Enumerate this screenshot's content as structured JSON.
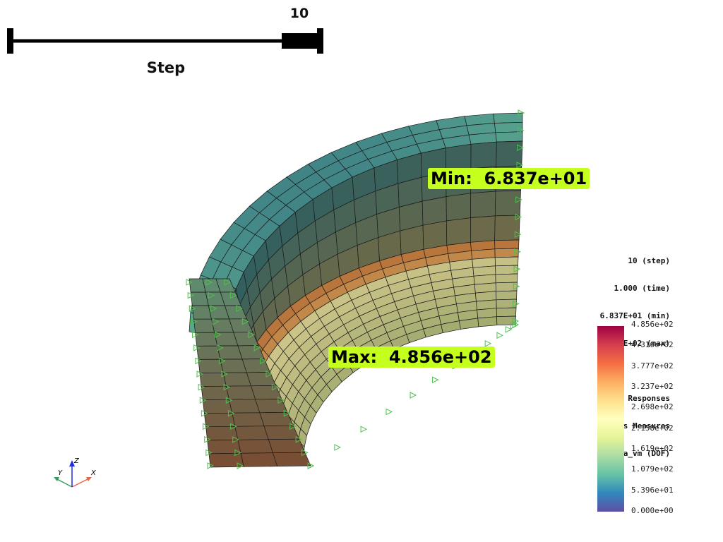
{
  "slider": {
    "value_label": "10",
    "title": "Step",
    "fraction": 1.0
  },
  "annotations": {
    "min_text": "Min:  6.837e+01",
    "max_text": "Max:  4.856e+02",
    "highlight_color": "#c4ff1e"
  },
  "info": {
    "step_line": "10 (step)",
    "time_line": "1.000 (time)",
    "min_line": "6.837E+01 (min)",
    "max_line": "4.856E+02 (max)",
    "response_group": "Solid Responses",
    "response_type": "Stress Measures",
    "response_dof": "Sigma_vm (DOF)"
  },
  "colorbar": {
    "ticks": [
      "4.856e+02",
      "4.316e+02",
      "3.777e+02",
      "3.237e+02",
      "2.698e+02",
      "2.158e+02",
      "1.619e+02",
      "1.079e+02",
      "5.396e+01",
      "0.000e+00"
    ],
    "colors": [
      "#9e0142",
      "#d53e4f",
      "#f46d43",
      "#fdae61",
      "#fee08b",
      "#ffffbf",
      "#e6f598",
      "#abdda4",
      "#66c2a5",
      "#3288bd",
      "#5e4fa2"
    ]
  },
  "axes": {
    "x_label": "X",
    "y_label": "Y",
    "z_label": "Z",
    "x_color": "#e8694a",
    "y_color": "#3a9a62",
    "z_color": "#1f2fe0"
  },
  "mesh": {
    "bc_color": "#4cc24c",
    "edge_color": "#1a1a1a"
  }
}
